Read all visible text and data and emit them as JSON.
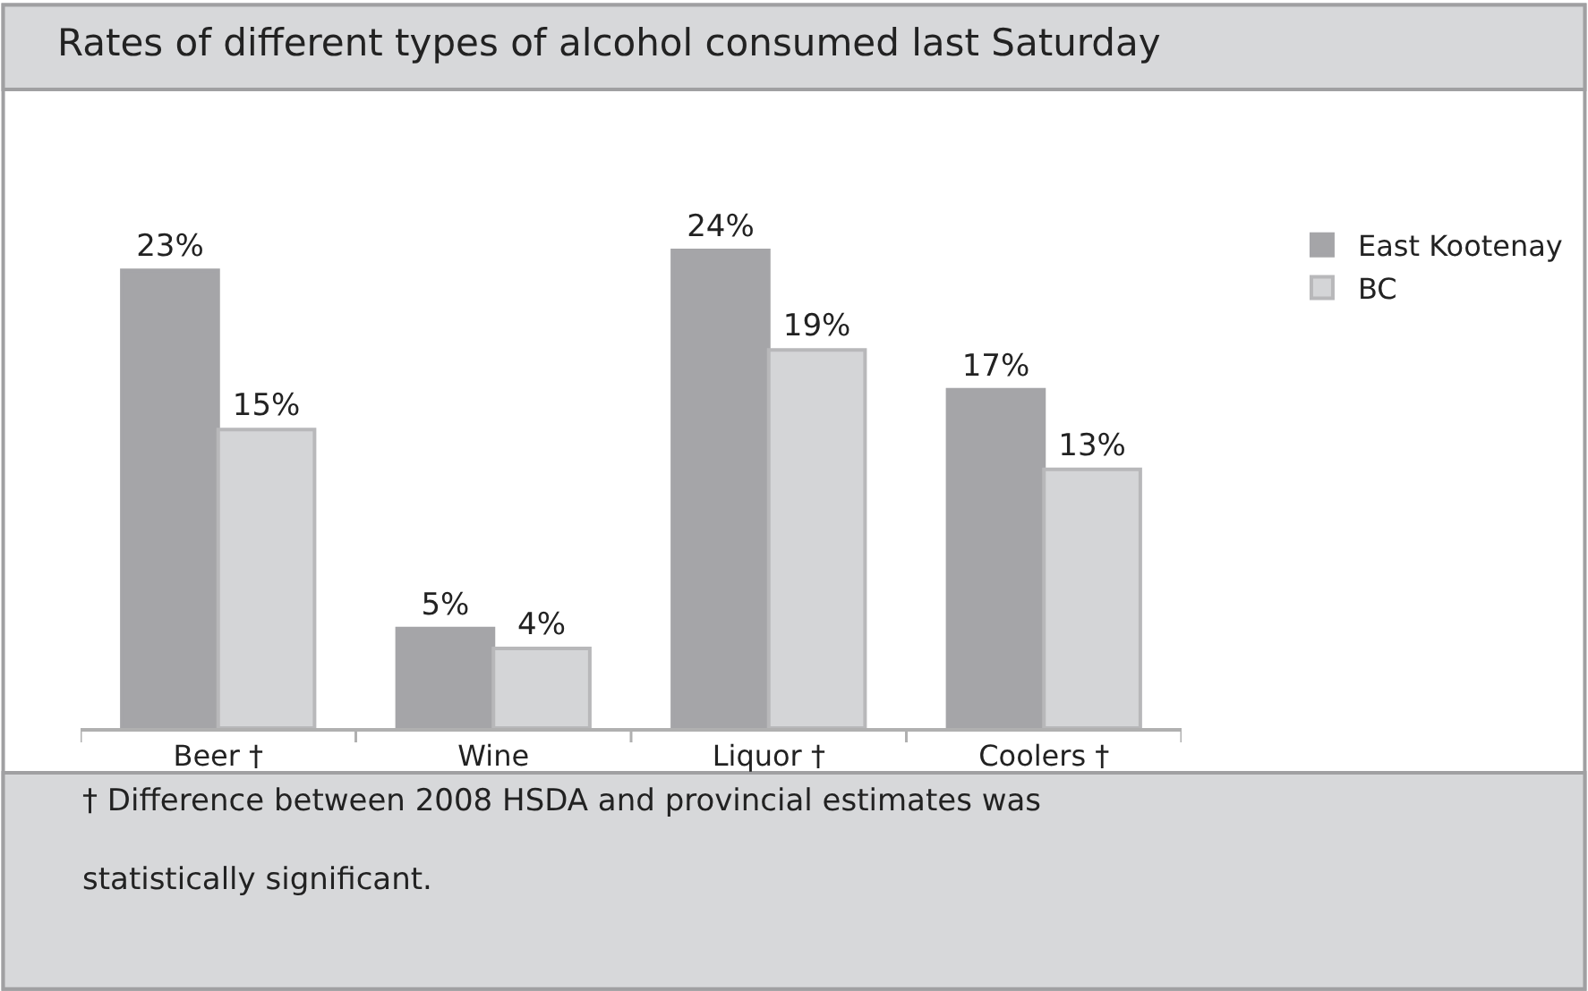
{
  "chart_data": {
    "type": "bar",
    "title": "Rates of different types of alcohol consumed last Saturday",
    "categories": [
      "Beer †",
      "Wine",
      "Liquor †",
      "Coolers †"
    ],
    "series": [
      {
        "name": "East Kootenay",
        "color": "#a5a5a8",
        "values": [
          23,
          5,
          24,
          17
        ],
        "value_labels": [
          "23%",
          "5%",
          "24%",
          "17%"
        ]
      },
      {
        "name": "BC",
        "color": "#d4d5d7",
        "values": [
          15,
          4,
          19,
          13
        ],
        "value_labels": [
          "15%",
          "4%",
          "19%",
          "13%"
        ]
      }
    ],
    "legend": "top right",
    "annotations": [
      "† Difference between 2008 HSDA and provincial estimates was statistically significant."
    ]
  }
}
